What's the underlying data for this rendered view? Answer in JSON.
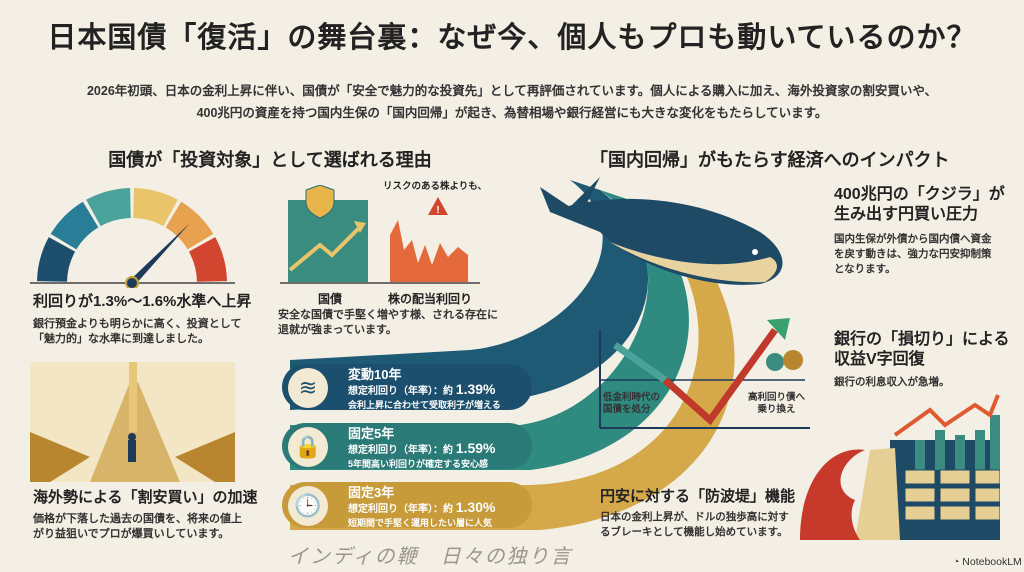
{
  "title": "日本国債「復活」の舞台裏：なぜ今、個人もプロも動いているのか？",
  "intro": [
    "2026年初頭、日本の金利上昇に伴い、国債が「安全で魅力的な投資先」として再評価されています。個人による購入に加え、海外投資家の割安買いや、",
    "400兆円の資産を持つ国内生保の「国内回帰」が起き、為替相場や銀行経営にも大きな変化をもたらしています。"
  ],
  "left": {
    "heading": "国債が「投資対象」として選ばれる理由",
    "gauge": {
      "title": "利回りが1.3%〜1.6%水準へ上昇",
      "desc": [
        "銀行預金よりも明らかに高く、投資として",
        "「魅力的」な水準に到達しました。"
      ],
      "colors": [
        "#1d4e6e",
        "#2a7d96",
        "#4aa39a",
        "#e9c46a",
        "#e8a24f",
        "#d2452f"
      ]
    },
    "compare": {
      "caption": "リスクのある株よりも、",
      "label_bond": "国債",
      "label_stock": "株の配当利回り",
      "desc": [
        "安全な国債で手堅く増やす様、される存在に",
        "退就が強まっています。"
      ]
    },
    "foreign": {
      "title": "海外勢による「割安買い」の加速",
      "desc": [
        "価格が下落した過去の国債を、将来の値上",
        "がり益狙いでプロが爆買いしています。"
      ]
    }
  },
  "cards": [
    {
      "title": "変動10年",
      "yield_label": "想定利回り（年率）：約",
      "yield": "1.39%",
      "note": "会利上昇に合わせて受取利子が増える",
      "icon": "wave-arrow-icon",
      "color": "#1c4f6e"
    },
    {
      "title": "固定5年",
      "yield_label": "想定利回り（年率）：約",
      "yield": "1.59%",
      "note": "5年間高い利回りが確定する安心感",
      "icon": "lock-icon",
      "color": "#2a7a78"
    },
    {
      "title": "固定3年",
      "yield_label": "想定利回り（年率）：約",
      "yield": "1.30%",
      "note": "短期間で手堅く運用したい層に人気",
      "icon": "clock-icon",
      "color": "#c79a3a"
    }
  ],
  "right": {
    "heading": "「国内回帰」がもたらす経済へのインパクト",
    "whale": {
      "title": [
        "400兆円の「クジラ」が",
        "生み出す円買い圧力"
      ],
      "desc": [
        "国内生保が外債から国内債へ資金",
        "を戻す動きは、強力な円安抑制策",
        "となります。"
      ]
    },
    "bank": {
      "title": [
        "銀行の「損切り」による",
        "収益V字回復"
      ],
      "desc": "銀行の利息収入が急増。",
      "left_label": [
        "低金利時代の",
        "国債を処分"
      ],
      "right_label": [
        "高利回り債へ",
        "乗り換え"
      ]
    },
    "wall": {
      "title": "円安に対する「防波堤」機能",
      "desc": [
        "日本の金利上昇が、ドルの独歩高に対す",
        "るブレーキとして機能し始めています。"
      ]
    }
  },
  "watermark": "インディの鞭　日々の独り言",
  "brand": "NotebookLM"
}
